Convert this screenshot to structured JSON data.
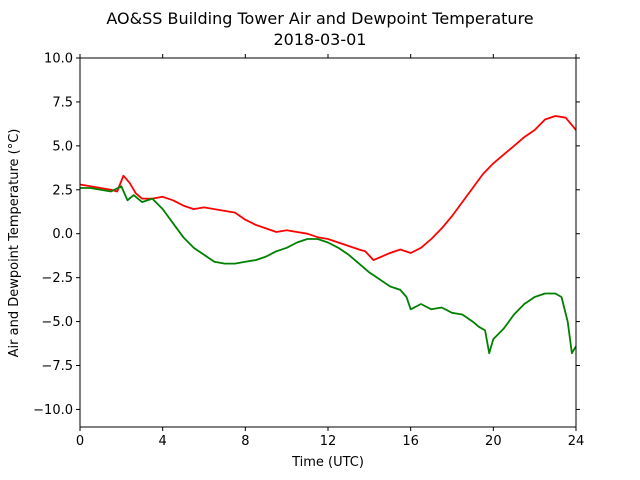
{
  "chart_data": {
    "type": "line",
    "title": "AO&SS Building Tower Air and Dewpoint Temperature",
    "subtitle": "2018-03-01",
    "xlabel": "Time (UTC)",
    "ylabel": "Air and Dewpoint Temperature (°C)",
    "xlim": [
      0,
      24
    ],
    "ylim": [
      -11,
      10
    ],
    "x_ticks": [
      0,
      4,
      8,
      12,
      16,
      20,
      24
    ],
    "x_tick_labels": [
      "0",
      "4",
      "8",
      "12",
      "16",
      "20",
      "24"
    ],
    "y_ticks": [
      10,
      7.5,
      5,
      2.5,
      0,
      -2.5,
      -5,
      -7.5,
      -10
    ],
    "y_tick_labels": [
      "10.0",
      "7.5",
      "5.0",
      "2.5",
      "0.0",
      "−2.5",
      "−5.0",
      "−7.5",
      "−10.0"
    ],
    "grid": false,
    "series": [
      {
        "color": "#ff0000",
        "x": [
          0,
          0.5,
          1.0,
          1.5,
          1.8,
          2.1,
          2.4,
          2.7,
          3.0,
          3.5,
          4.0,
          4.5,
          5.0,
          5.5,
          6.0,
          6.5,
          7.0,
          7.5,
          8.0,
          8.5,
          9.0,
          9.5,
          10.0,
          10.5,
          11.0,
          11.5,
          12.0,
          12.5,
          13.0,
          13.5,
          13.8,
          14.2,
          14.6,
          15.0,
          15.5,
          16.0,
          16.5,
          17.0,
          17.5,
          18.0,
          18.5,
          19.0,
          19.5,
          20.0,
          20.5,
          21.0,
          21.5,
          22.0,
          22.5,
          23.0,
          23.5,
          24.0
        ],
        "values": [
          2.8,
          2.7,
          2.6,
          2.5,
          2.4,
          3.3,
          2.9,
          2.3,
          2.0,
          2.0,
          2.1,
          1.9,
          1.6,
          1.4,
          1.5,
          1.4,
          1.3,
          1.2,
          0.8,
          0.5,
          0.3,
          0.1,
          0.2,
          0.1,
          0.0,
          -0.2,
          -0.3,
          -0.5,
          -0.7,
          -0.9,
          -1.0,
          -1.5,
          -1.3,
          -1.1,
          -0.9,
          -1.1,
          -0.8,
          -0.3,
          0.3,
          1.0,
          1.8,
          2.6,
          3.4,
          4.0,
          4.5,
          5.0,
          5.5,
          5.9,
          6.5,
          6.7,
          6.6,
          5.9
        ]
      },
      {
        "color": "#008000",
        "x": [
          0,
          0.5,
          1.0,
          1.5,
          2.0,
          2.3,
          2.6,
          3.0,
          3.5,
          4.0,
          4.5,
          5.0,
          5.5,
          6.0,
          6.5,
          7.0,
          7.5,
          8.0,
          8.5,
          9.0,
          9.5,
          10.0,
          10.5,
          11.0,
          11.5,
          12.0,
          12.5,
          13.0,
          13.5,
          14.0,
          14.5,
          15.0,
          15.5,
          15.8,
          16.0,
          16.5,
          17.0,
          17.5,
          18.0,
          18.5,
          19.0,
          19.3,
          19.6,
          19.8,
          20.0,
          20.5,
          21.0,
          21.5,
          22.0,
          22.5,
          23.0,
          23.3,
          23.6,
          23.8,
          24.0
        ],
        "values": [
          2.6,
          2.6,
          2.5,
          2.4,
          2.7,
          1.9,
          2.2,
          1.8,
          2.0,
          1.4,
          0.6,
          -0.2,
          -0.8,
          -1.2,
          -1.6,
          -1.7,
          -1.7,
          -1.6,
          -1.5,
          -1.3,
          -1.0,
          -0.8,
          -0.5,
          -0.3,
          -0.3,
          -0.5,
          -0.8,
          -1.2,
          -1.7,
          -2.2,
          -2.6,
          -3.0,
          -3.2,
          -3.6,
          -4.3,
          -4.0,
          -4.3,
          -4.2,
          -4.5,
          -4.6,
          -5.0,
          -5.3,
          -5.5,
          -6.8,
          -6.0,
          -5.4,
          -4.6,
          -4.0,
          -3.6,
          -3.4,
          -3.4,
          -3.6,
          -5.0,
          -6.8,
          -6.4
        ]
      }
    ]
  }
}
